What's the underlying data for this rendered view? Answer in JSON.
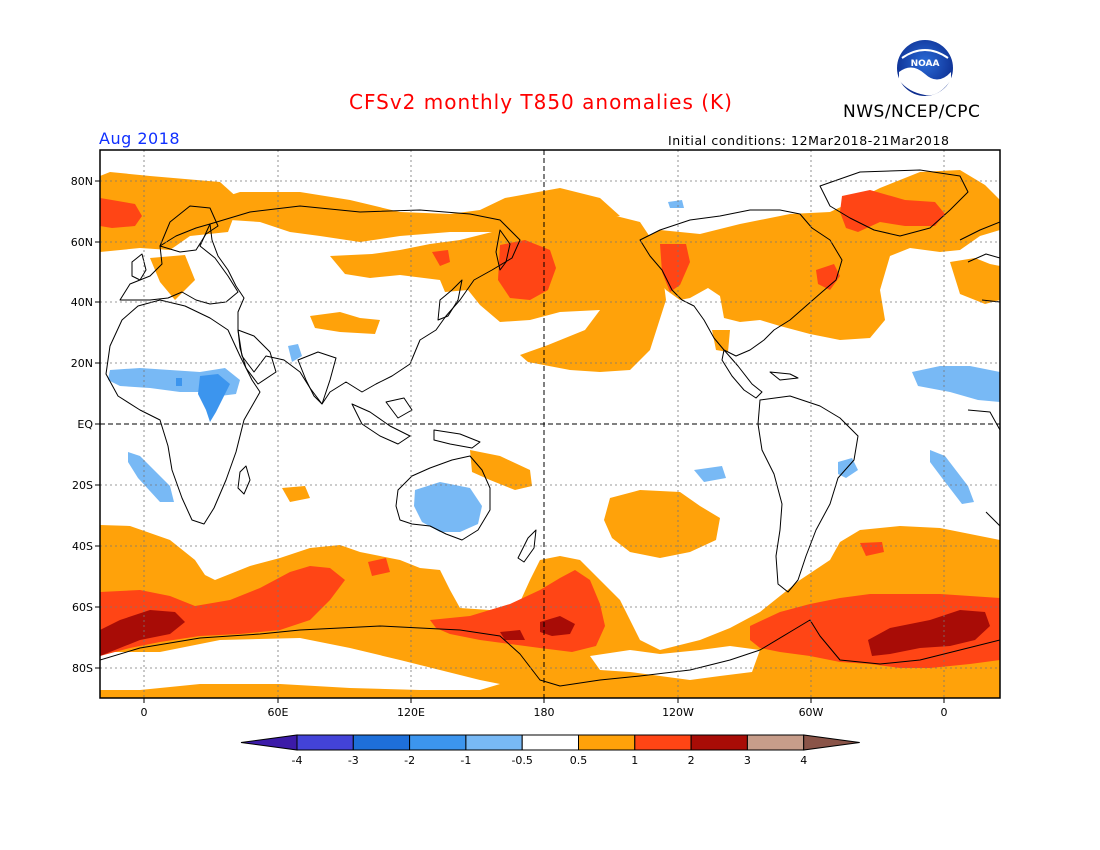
{
  "header": {
    "title": "CFSv2 monthly T850 anomalies (K)",
    "agency": "NWS/NCEP/CPC",
    "month": "Aug 2018",
    "initial_conditions": "Initial conditions: 12Mar2018-21Mar2018",
    "logo_text": "NOAA"
  },
  "axes": {
    "lat_labels": [
      "80N",
      "60N",
      "40N",
      "20N",
      "EQ",
      "20S",
      "40S",
      "60S",
      "80S"
    ],
    "lon_labels": [
      "0",
      "60E",
      "120E",
      "180",
      "120W",
      "60W",
      "0"
    ]
  },
  "colorbar": {
    "labels": [
      "-4",
      "-3",
      "-2",
      "-1",
      "-0.5",
      "0.5",
      "1",
      "2",
      "3",
      "4"
    ],
    "colors": [
      "#3c1ba8",
      "#4343d8",
      "#1e6fd9",
      "#3c95ee",
      "#78b9f5",
      "#ffffff",
      "#ffa20a",
      "#ff4515",
      "#a80c06",
      "#c79d8a",
      "#8a5448"
    ]
  },
  "legend_colors": {
    "warm_1": "#ffa20a",
    "warm_2": "#ff4515",
    "warm_3": "#a80c06",
    "cool_1": "#78b9f5",
    "cool_2": "#3c95ee"
  }
}
